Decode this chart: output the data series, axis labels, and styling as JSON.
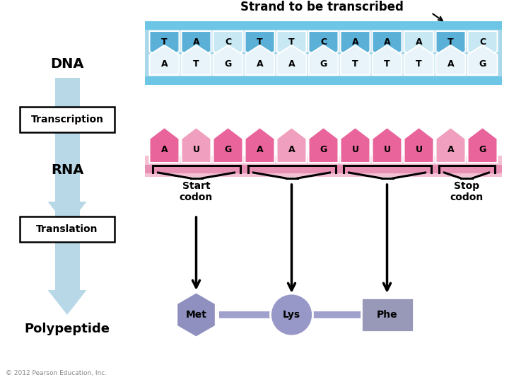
{
  "title": "Strand to be transcribed",
  "dna_top": [
    "T",
    "A",
    "C",
    "T",
    "T",
    "C",
    "A",
    "A",
    "A",
    "T",
    "C"
  ],
  "dna_bottom": [
    "A",
    "T",
    "G",
    "A",
    "A",
    "G",
    "T",
    "T",
    "T",
    "A",
    "G"
  ],
  "rna": [
    "A",
    "U",
    "G",
    "A",
    "A",
    "G",
    "U",
    "U",
    "U",
    "A",
    "G"
  ],
  "dna_top_dark_indices": [
    0,
    1,
    3,
    5,
    6,
    7,
    9
  ],
  "dna_bottom_dark_indices": [],
  "rna_dark_indices": [
    0,
    2,
    3,
    5,
    6,
    7,
    8,
    10
  ],
  "rna_light_indices": [
    1,
    4,
    9
  ],
  "bg_color": "#ffffff",
  "dna_bg": "#a8d8ea",
  "dna_top_bar": "#6ec6e6",
  "dna_bot_bar": "#6ec6e6",
  "dna_dark_blue": "#5bb0d8",
  "dna_light_blue": "#c8e8f4",
  "dna_white_blue": "#e8f4fa",
  "rna_pink_dark": "#e8649a",
  "rna_pink_light": "#f0a0be",
  "rna_bg_pink": "#e890b4",
  "rna_bg_light": "#f4c0d4",
  "met_color": "#9090c0",
  "lys_color": "#9898c8",
  "phe_color": "#9898b8",
  "connect_color": "#a0a0cc",
  "arrow_color": "#b8d8e8",
  "copyright": "© 2012 Pearson Education, Inc."
}
